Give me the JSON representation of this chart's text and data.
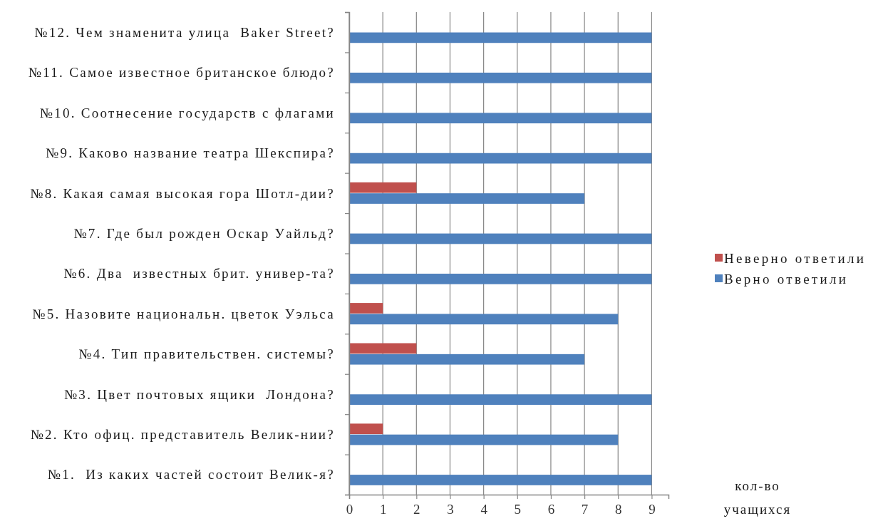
{
  "chart_data": {
    "type": "bar",
    "orientation": "horizontal",
    "categories": [
      "№12. Чем знаменита улица  Baker Street?",
      "№11. Самое известное британское блюдо?",
      "№10. Соотнесение государств с флагами",
      "№9. Каково название театра Шекспира?",
      "№8. Какая самая высокая гора Шотл-дии?",
      "№7. Где был рожден Оскар Уайльд?",
      "№6. Два  известных брит. универ-та?",
      "№5. Назовите национальн. цветок Уэльса",
      "№4. Тип правительствен. системы?",
      "№3. Цвет почтовых ящики  Лондона?",
      "№2. Кто офиц. представитель Велик-нии?",
      "№1.  Из каких частей состоит Велик-я?"
    ],
    "series": [
      {
        "name": "Неверно ответили",
        "color": "#c0504d",
        "values": [
          null,
          null,
          null,
          null,
          2,
          null,
          null,
          1,
          2,
          null,
          1,
          null
        ]
      },
      {
        "name": "Верно ответили",
        "color": "#4f81bd",
        "values": [
          9,
          9,
          9,
          9,
          7,
          9,
          9,
          8,
          7,
          9,
          8,
          9
        ]
      }
    ],
    "annotations": [
      "кол-во учащихся"
    ],
    "xlim": [
      0,
      9.5
    ],
    "xticks": [
      0,
      1,
      2,
      3,
      4,
      5,
      6,
      7,
      8,
      9
    ],
    "grid": "x",
    "legend": "right"
  }
}
